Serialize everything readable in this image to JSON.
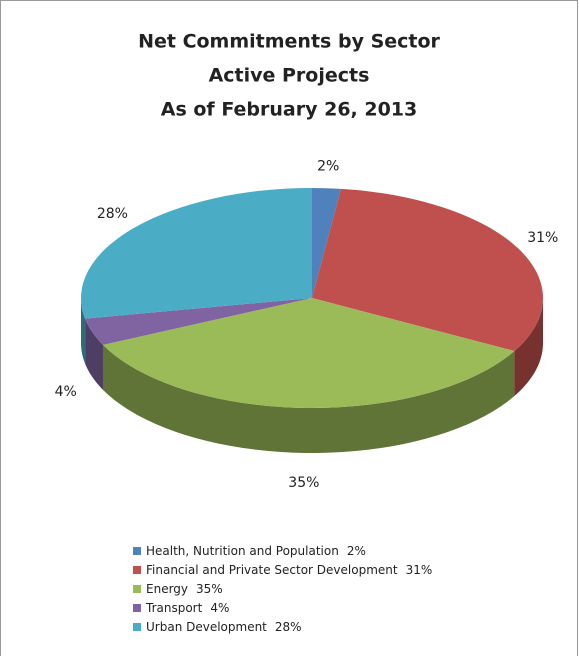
{
  "chart_data": {
    "type": "pie3d",
    "title": [
      "Net Commitments by Sector",
      "Active Projects",
      "As of February 26, 2013"
    ],
    "categories": [
      "Health, Nutrition and Population",
      "Financial and Private Sector Development",
      "Energy",
      "Transport",
      "Urban Development"
    ],
    "values": [
      2,
      31,
      35,
      4,
      28
    ],
    "value_labels": [
      "2%",
      "31%",
      "35%",
      "4%",
      "28%"
    ],
    "colors": [
      "#4f81bd",
      "#c0504d",
      "#9bbb59",
      "#8064a2",
      "#4bacc6"
    ],
    "legend": "bottom"
  }
}
